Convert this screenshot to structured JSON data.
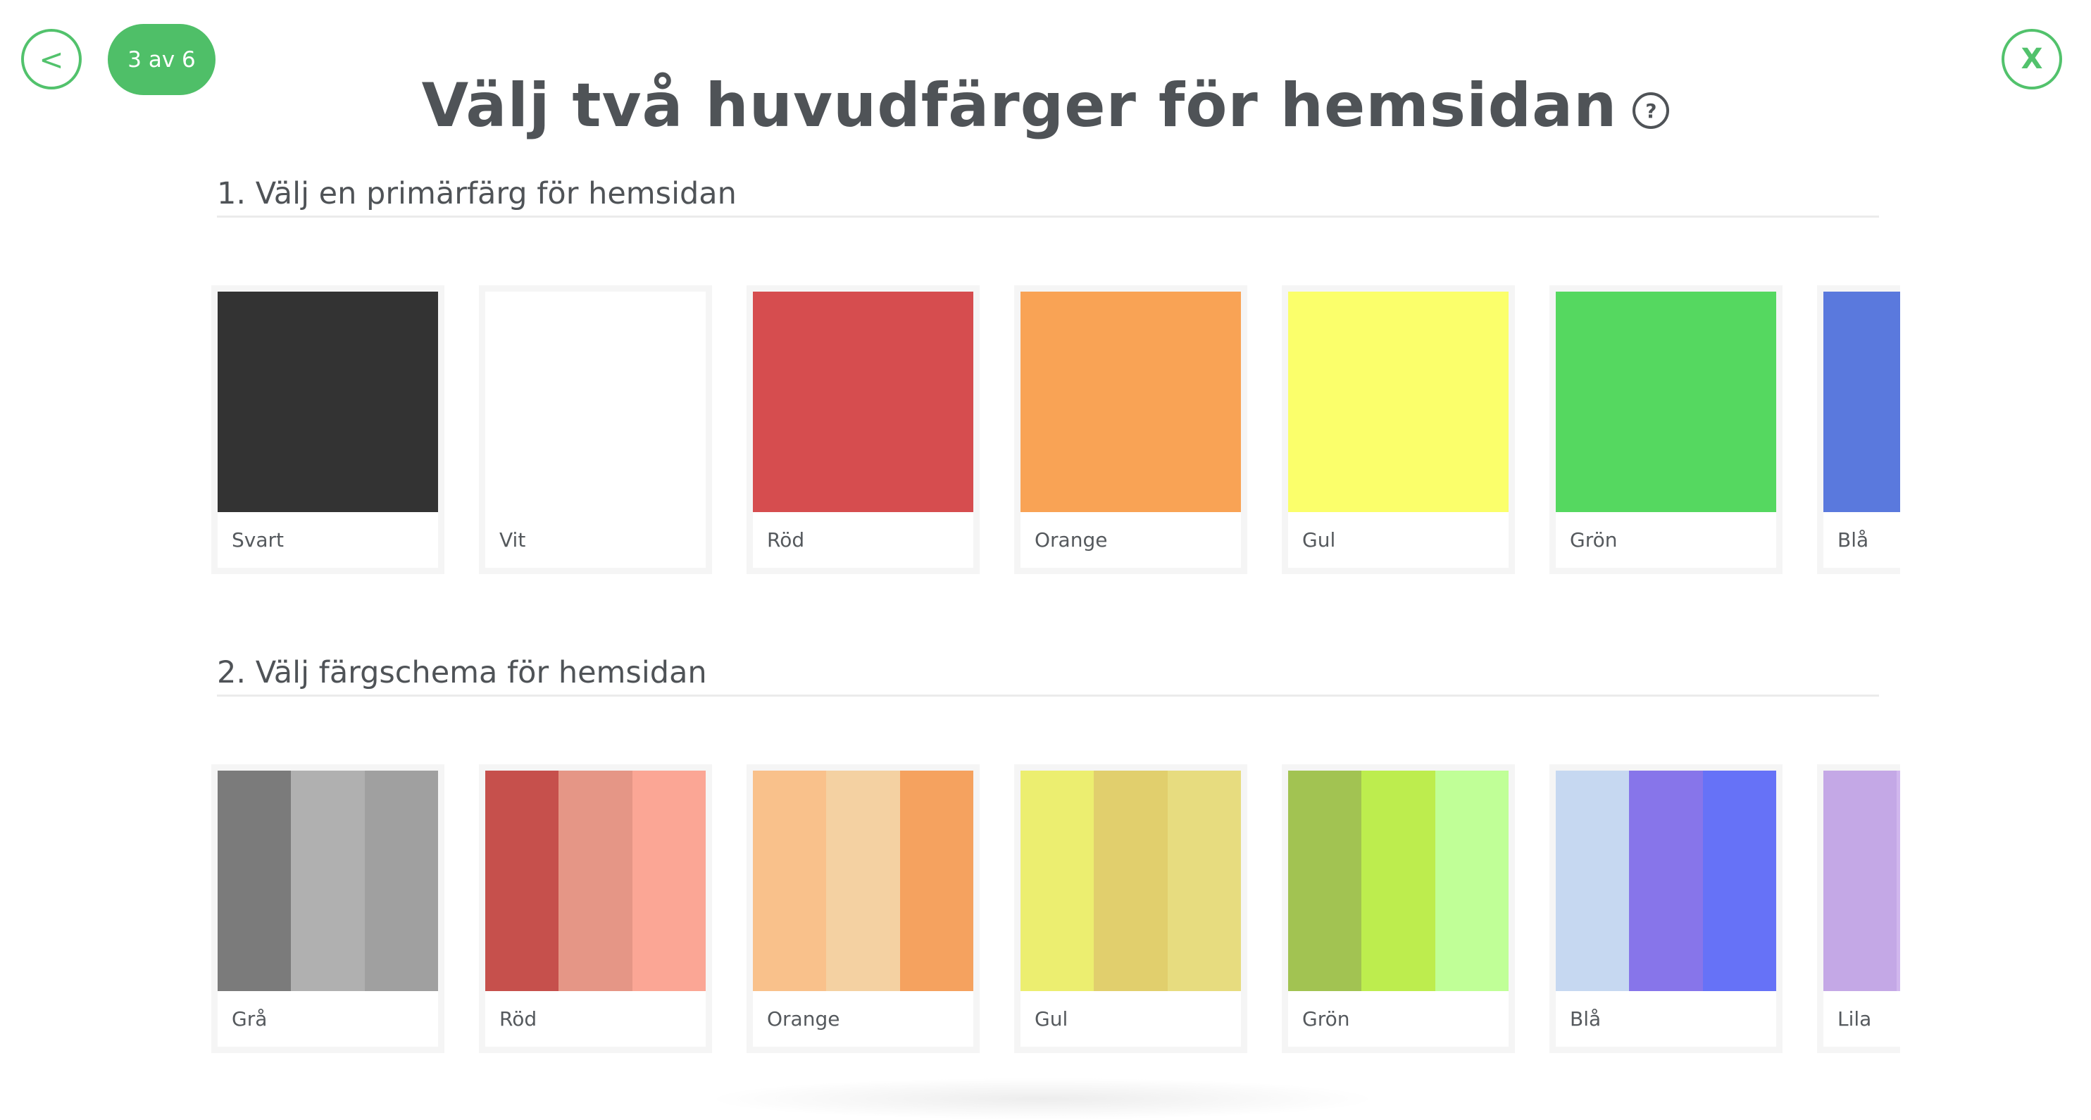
{
  "nav": {
    "back_label": "<",
    "step_label": "3 av 6",
    "close_label": "X"
  },
  "header": {
    "title": "Välj två huvudfärger för hemsidan",
    "help_label": "?"
  },
  "primary": {
    "title": "1. Välj en primärfärg för hemsidan",
    "colors": [
      {
        "label": "Svart",
        "color": "#333333"
      },
      {
        "label": "Vit",
        "color": "#ffffff"
      },
      {
        "label": "Röd",
        "color": "#d64d4f"
      },
      {
        "label": "Orange",
        "color": "#f9a355"
      },
      {
        "label": "Gul",
        "color": "#fbff6b"
      },
      {
        "label": "Grön",
        "color": "#55d860"
      },
      {
        "label": "Blå",
        "color": "#5a79dd"
      }
    ]
  },
  "scheme": {
    "title": "2. Välj färgschema för hemsidan",
    "schemes": [
      {
        "label": "Grå",
        "colors": [
          "#7b7b7b",
          "#b0b0b0",
          "#a0a0a0"
        ]
      },
      {
        "label": "Röd",
        "colors": [
          "#c6504c",
          "#e59686",
          "#fba695"
        ]
      },
      {
        "label": "Orange",
        "colors": [
          "#f9c18b",
          "#f4d1a2",
          "#f5a25f"
        ]
      },
      {
        "label": "Gul",
        "colors": [
          "#ecee70",
          "#e1cf6d",
          "#e7dc7f"
        ]
      },
      {
        "label": "Grön",
        "colors": [
          "#a2c352",
          "#bded4e",
          "#c0ff97"
        ]
      },
      {
        "label": "Blå",
        "colors": [
          "#c6d8f1",
          "#8775ea",
          "#6672f7"
        ]
      },
      {
        "label": "Lila",
        "colors": [
          "#c4a8e6",
          "#d1b7ee",
          "#b497e0"
        ]
      }
    ]
  }
}
